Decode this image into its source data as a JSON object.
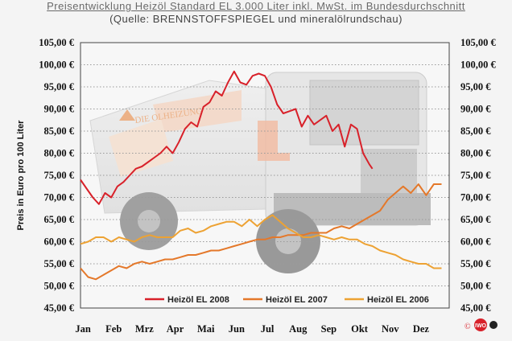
{
  "header": {
    "title": "Preisentwicklung Heizöl Standard EL 3.000 Liter inkl. MwSt. im Bundesdurchschnitt",
    "subtitle": "(Quelle: BRENNSTOFFSPIEGEL und mineralölrundschau)"
  },
  "background": {
    "truck_lettering": "DIE OLHEIZUNG"
  },
  "copyright": {
    "symbol": "©",
    "logo_text": "IWO"
  },
  "colors": {
    "2008": "#d8212a",
    "2007": "#e4782a",
    "2006": "#eda233",
    "grid": "#9a9a9a",
    "axis_text": "#111111"
  },
  "chart_data": {
    "type": "line",
    "title": "Preisentwicklung Heizöl Standard EL 3.000 Liter inkl. MwSt. im Bundesdurchschnitt",
    "subtitle": "(Quelle: BRENNSTOFFSPIEGEL und mineralölrundschau)",
    "ylabel": "Preis in Euro pro 100 Liter",
    "xlabel": "",
    "ylim": [
      45,
      105
    ],
    "xlim": [
      0,
      12
    ],
    "y_ticks": [
      45,
      50,
      55,
      60,
      65,
      70,
      75,
      80,
      85,
      90,
      95,
      100,
      105
    ],
    "y_tick_labels": [
      "45,00 €",
      "50,00 €",
      "55,00 €",
      "60,00 €",
      "65,00 €",
      "70,00 €",
      "75,00 €",
      "80,00 €",
      "85,00 €",
      "90,00 €",
      "95,00 €",
      "100,00 €",
      "105,00 €"
    ],
    "categories": [
      "Jan",
      "Feb",
      "Mrz",
      "Apr",
      "Mai",
      "Jun",
      "Jul",
      "Aug",
      "Sep",
      "Okt",
      "Nov",
      "Dez"
    ],
    "grid": true,
    "grid_style": "dotted horizontal",
    "secondary_y_axis": true,
    "legend_position": "bottom-center",
    "series": [
      {
        "name": "Heizöl EL 2008",
        "color": "#d8212a",
        "x": [
          0.0,
          0.2,
          0.4,
          0.6,
          0.8,
          1.0,
          1.2,
          1.4,
          1.6,
          1.8,
          2.0,
          2.2,
          2.4,
          2.6,
          2.8,
          3.0,
          3.2,
          3.4,
          3.6,
          3.8,
          4.0,
          4.2,
          4.4,
          4.6,
          4.8,
          5.0,
          5.2,
          5.4,
          5.6,
          5.8,
          6.0,
          6.2,
          6.4,
          6.6,
          6.8,
          7.0,
          7.2,
          7.4,
          7.6,
          7.8,
          8.0,
          8.2,
          8.4,
          8.6,
          8.8,
          9.0,
          9.2,
          9.4,
          9.5
        ],
        "y": [
          74.0,
          72.0,
          70.0,
          68.5,
          71.0,
          70.0,
          72.5,
          73.5,
          75.0,
          76.5,
          77.0,
          78.0,
          79.0,
          80.0,
          81.5,
          80.0,
          82.5,
          85.5,
          87.0,
          86.0,
          90.5,
          91.5,
          94.0,
          93.0,
          96.0,
          98.5,
          96.0,
          95.5,
          97.5,
          98.0,
          97.5,
          95.0,
          91.0,
          89.0,
          89.5,
          90.0,
          86.0,
          88.5,
          86.5,
          87.5,
          88.5,
          85.0,
          86.5,
          81.5,
          86.5,
          85.5,
          80.0,
          77.5,
          76.5
        ]
      },
      {
        "name": "Heizöl EL 2007",
        "color": "#e4782a",
        "x": [
          0.0,
          0.25,
          0.5,
          0.75,
          1.0,
          1.25,
          1.5,
          1.75,
          2.0,
          2.25,
          2.5,
          2.75,
          3.0,
          3.25,
          3.5,
          3.75,
          4.0,
          4.25,
          4.5,
          4.75,
          5.0,
          5.25,
          5.5,
          5.75,
          6.0,
          6.25,
          6.5,
          6.75,
          7.0,
          7.25,
          7.5,
          7.75,
          8.0,
          8.25,
          8.5,
          8.75,
          9.0,
          9.25,
          9.5,
          9.75,
          10.0,
          10.25,
          10.5,
          10.75,
          11.0,
          11.25,
          11.5,
          11.75
        ],
        "y": [
          54.0,
          52.0,
          51.5,
          52.5,
          53.5,
          54.5,
          54.0,
          55.0,
          55.5,
          55.0,
          55.5,
          56.0,
          56.0,
          56.5,
          57.0,
          57.0,
          57.5,
          58.0,
          58.0,
          58.5,
          59.0,
          59.5,
          60.0,
          60.5,
          60.5,
          61.0,
          61.0,
          61.5,
          61.5,
          61.5,
          62.0,
          62.0,
          62.0,
          63.0,
          63.5,
          63.0,
          64.0,
          65.0,
          66.0,
          67.0,
          69.5,
          71.0,
          72.5,
          71.0,
          73.0,
          70.5,
          73.0,
          73.0
        ]
      },
      {
        "name": "Heizöl EL 2006",
        "color": "#eda233",
        "x": [
          0.0,
          0.25,
          0.5,
          0.75,
          1.0,
          1.25,
          1.5,
          1.75,
          2.0,
          2.25,
          2.5,
          2.75,
          3.0,
          3.25,
          3.5,
          3.75,
          4.0,
          4.25,
          4.5,
          4.75,
          5.0,
          5.25,
          5.5,
          5.75,
          6.0,
          6.25,
          6.5,
          6.75,
          7.0,
          7.25,
          7.5,
          7.75,
          8.0,
          8.25,
          8.5,
          8.75,
          9.0,
          9.25,
          9.5,
          9.75,
          10.0,
          10.25,
          10.5,
          10.75,
          11.0,
          11.25,
          11.5,
          11.75
        ],
        "y": [
          59.5,
          60.0,
          61.0,
          61.0,
          60.0,
          61.0,
          60.5,
          60.0,
          61.0,
          61.5,
          61.0,
          61.0,
          61.0,
          62.5,
          63.0,
          62.0,
          62.5,
          63.5,
          64.0,
          64.5,
          64.5,
          63.5,
          65.0,
          63.5,
          65.0,
          66.0,
          64.5,
          63.0,
          62.0,
          61.0,
          61.0,
          61.5,
          61.0,
          60.5,
          61.0,
          60.5,
          60.5,
          59.5,
          59.0,
          58.0,
          57.5,
          57.0,
          56.0,
          55.5,
          55.0,
          55.0,
          54.0,
          54.0
        ]
      }
    ]
  }
}
